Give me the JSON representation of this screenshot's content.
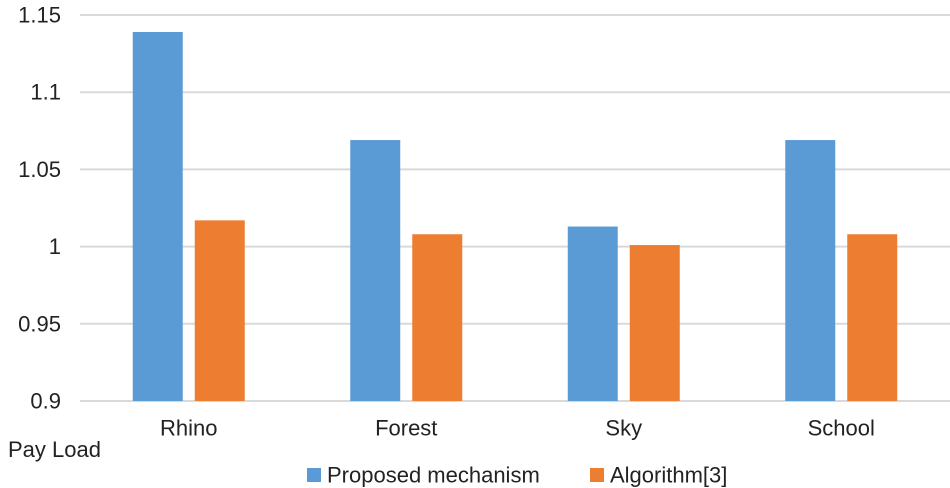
{
  "chart_data": {
    "type": "bar",
    "title": "",
    "xlabel": "Pay Load",
    "ylabel": "",
    "categories": [
      "Rhino",
      "Forest",
      "Sky",
      "School"
    ],
    "series": [
      {
        "name": "Proposed mechanism",
        "color": "#5b9bd5",
        "values": [
          1.139,
          1.069,
          1.013,
          1.069
        ]
      },
      {
        "name": "Algorithm[3]",
        "color": "#ed7d31",
        "values": [
          1.017,
          1.008,
          1.001,
          1.008
        ]
      }
    ],
    "ylim": [
      0.9,
      1.15
    ],
    "yticks": [
      "0.9",
      "0.95",
      "1",
      "1.05",
      "1.1",
      "1.15"
    ],
    "grid": true,
    "legend_position": "bottom"
  }
}
